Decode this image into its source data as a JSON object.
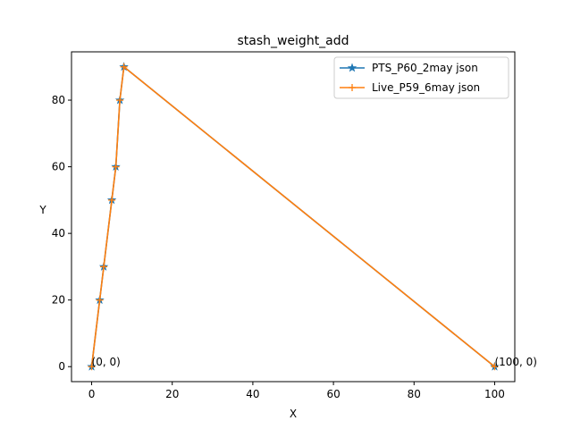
{
  "chart_data": {
    "type": "line",
    "title": "stash_weight_add",
    "xlabel": "X",
    "ylabel": "Y",
    "xlim": [
      -5,
      105
    ],
    "ylim": [
      -4.5,
      94.5
    ],
    "x_ticks": [
      0,
      20,
      40,
      60,
      80,
      100
    ],
    "y_ticks": [
      0,
      20,
      40,
      60,
      80
    ],
    "grid": false,
    "legend_position": "upper right",
    "series": [
      {
        "name": "PTS_P60_2may json",
        "color": "#1f77b4",
        "marker": "star",
        "x": [
          0,
          2,
          3,
          5,
          6,
          7,
          8,
          100
        ],
        "y": [
          0,
          20,
          30,
          50,
          60,
          80,
          90,
          0
        ]
      },
      {
        "name": "Live_P59_6may json",
        "color": "#ff7f0e",
        "marker": "plus",
        "x": [
          0,
          2,
          3,
          5,
          6,
          7,
          8,
          100
        ],
        "y": [
          0,
          20,
          30,
          50,
          60,
          80,
          90,
          0
        ]
      }
    ],
    "annotations": [
      {
        "text": "(0, 0)",
        "x": 0,
        "y": 0
      },
      {
        "text": "(100, 0)",
        "x": 100,
        "y": 0
      }
    ]
  }
}
